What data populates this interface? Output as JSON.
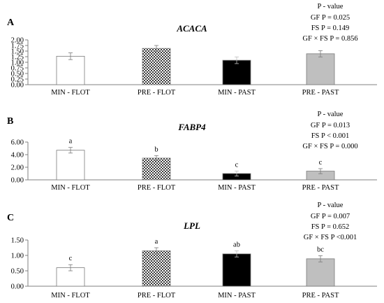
{
  "colors": {
    "bar_white": "#ffffff",
    "bar_checkered": "checkered-dark-gray",
    "bar_black": "#000000",
    "bar_gray": "#bfbfbf",
    "axis": "#808080"
  },
  "chart_data": [
    {
      "type": "bar",
      "panel_label": "A",
      "title": "ACACA",
      "categories": [
        "MIN - FLOT",
        "PRE  - FLOT",
        "MIN - PAST",
        "PRE  - PAST"
      ],
      "values": [
        1.27,
        1.62,
        1.09,
        1.38
      ],
      "errors": [
        0.15,
        0.13,
        0.15,
        0.14
      ],
      "bar_styles": [
        "white",
        "checkered",
        "black",
        "gray"
      ],
      "letters": [
        "",
        "",
        "",
        ""
      ],
      "yticks": [
        "0.00",
        "0.25",
        "0.50",
        "0.75",
        "1.00",
        "1.25",
        "1.50",
        "1.75",
        "2.00"
      ],
      "ylim": [
        0,
        2
      ],
      "pvalue": [
        "P - value",
        "GF P = 0.025",
        "FS P = 0.149",
        "GF × FS P = 0.856"
      ]
    },
    {
      "type": "bar",
      "panel_label": "B",
      "title": "FABP4",
      "categories": [
        "MIN - FLOT",
        "PRE  - FLOT",
        "MIN - PAST",
        "PRE  - PAST"
      ],
      "values": [
        4.7,
        3.45,
        1.0,
        1.38
      ],
      "errors": [
        0.45,
        0.4,
        0.4,
        0.4
      ],
      "bar_styles": [
        "white",
        "checkered",
        "black",
        "gray"
      ],
      "letters": [
        "a",
        "b",
        "c",
        "c"
      ],
      "yticks": [
        "0.00",
        "2.00",
        "4.00",
        "6.00"
      ],
      "ylim": [
        0,
        6
      ],
      "pvalue": [
        "P - value",
        "GF P = 0.013",
        "FS P < 0.001",
        "GF × FS P = 0.000"
      ]
    },
    {
      "type": "bar",
      "panel_label": "C",
      "title": "LPL",
      "categories": [
        "MIN - FLOT",
        "PRE  - FLOT",
        "MIN - PAST",
        "PRE  - PAST"
      ],
      "values": [
        0.6,
        1.15,
        1.05,
        0.89
      ],
      "errors": [
        0.1,
        0.1,
        0.1,
        0.1
      ],
      "bar_styles": [
        "white",
        "checkered",
        "black",
        "gray"
      ],
      "letters": [
        "c",
        "a",
        "ab",
        "bc"
      ],
      "yticks": [
        "0.00",
        "0.50",
        "1.00",
        "1.50"
      ],
      "ylim": [
        0,
        1.5
      ],
      "pvalue": [
        "P - value",
        "GF P = 0.007",
        "FS P = 0.652",
        "GF × FS P <0.001"
      ]
    }
  ]
}
